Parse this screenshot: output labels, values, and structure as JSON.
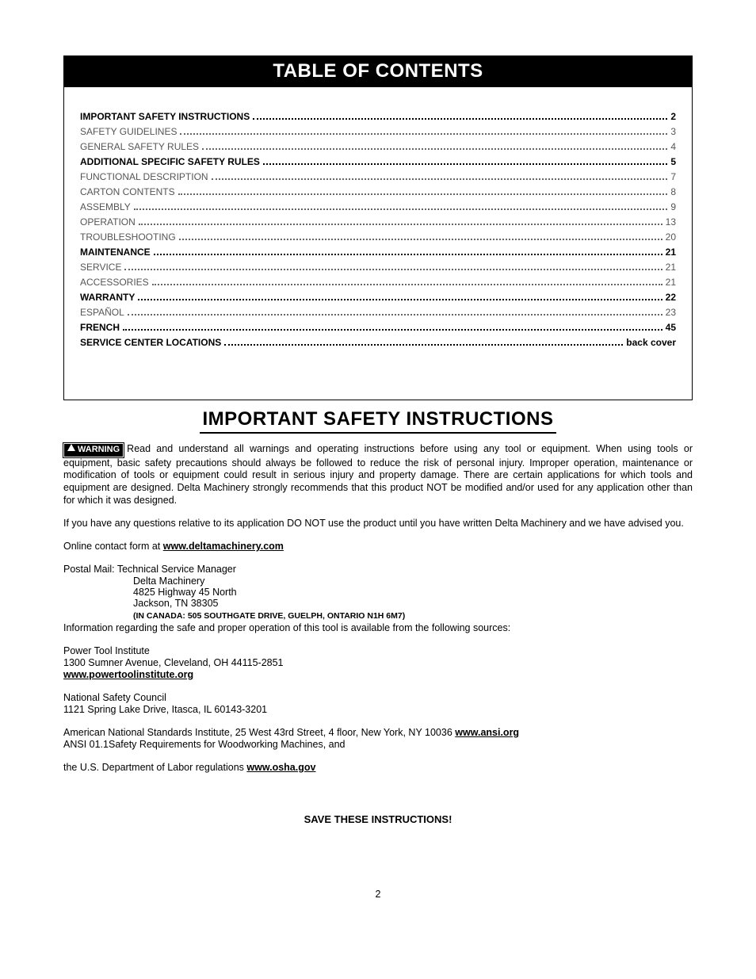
{
  "toc": {
    "title": "TABLE OF CONTENTS",
    "entries": [
      {
        "label": "IMPORTANT SAFETY INSTRUCTIONS",
        "page": "2",
        "light": false
      },
      {
        "label": "SAFETY GUIDELINES",
        "page": "3",
        "light": true
      },
      {
        "label": "GENERAL SAFETY RULES",
        "page": "4",
        "light": true
      },
      {
        "label": "ADDITIONAL SPECIFIC SAFETY RULES",
        "page": "5",
        "light": false
      },
      {
        "label": "FUNCTIONAL DESCRIPTION",
        "page": "7",
        "light": true
      },
      {
        "label": "CARTON CONTENTS",
        "page": "8",
        "light": true
      },
      {
        "label": "ASSEMBLY",
        "page": "9",
        "light": true
      },
      {
        "label": "OPERATION",
        "page": "13",
        "light": true
      },
      {
        "label": "TROUBLESHOOTING",
        "page": "20",
        "light": true
      },
      {
        "label": "MAINTENANCE",
        "page": "21",
        "light": false
      },
      {
        "label": "SERVICE",
        "page": "21",
        "light": true
      },
      {
        "label": "ACCESSORIES",
        "page": "21",
        "light": true
      },
      {
        "label": "WARRANTY",
        "page": "22",
        "light": false
      },
      {
        "label": "ESPAÑOL",
        "page": "23",
        "light": true
      },
      {
        "label": "FRENCH",
        "page": "45",
        "light": false
      },
      {
        "label": "SERVICE CENTER LOCATIONS",
        "page": "back cover",
        "light": false
      }
    ]
  },
  "safety": {
    "title": "IMPORTANT SAFETY INSTRUCTIONS",
    "warning_label": "WARNING",
    "para1": "Read and understand all warnings and operating instructions before using any tool or equipment. When using tools or equipment, basic safety precautions should always be followed to reduce the risk of personal injury. Improper operation, maintenance or modification of tools or equipment could result in serious injury and property damage. There are certain applications for which tools and equipment are designed. Delta Machinery strongly recommends that this product NOT be modified and/or used for any application other than for which it was designed.",
    "para2": "If you have any questions relative to its application DO NOT use the product until you have written Delta Machinery and we have advised you.",
    "online_prefix": "Online contact form at ",
    "online_link": "www.deltamachinery.com",
    "postal_line1": "Postal Mail: Technical Service Manager",
    "postal_line2": "Delta Machinery",
    "postal_line3": "4825 Highway 45 North",
    "postal_line4": "Jackson, TN 38305",
    "canada_note": "(IN CANADA: 505 SOUTHGATE DRIVE, GUELPH, ONTARIO  N1H 6M7)",
    "info_line": "Information regarding the safe and proper operation of this tool is available from the following sources:",
    "pti_name": "Power Tool Institute",
    "pti_addr": "1300 Sumner Avenue, Cleveland, OH 44115-2851",
    "pti_link": "www.powertoolinstitute.org",
    "nsc_name": "National Safety Council",
    "nsc_addr": "1121 Spring Lake Drive, Itasca, IL 60143-3201",
    "ansi_prefix": "American National Standards Institute, 25 West 43rd Street, 4 floor, New York, NY 10036 ",
    "ansi_link": "www.ansi.org",
    "ansi_line2": "ANSI 01.1Safety Requirements for Woodworking Machines, and",
    "osha_prefix": "the U.S. Department of Labor regulations ",
    "osha_link": "www.osha.gov",
    "save": "SAVE THESE INSTRUCTIONS!",
    "page_number": "2"
  }
}
